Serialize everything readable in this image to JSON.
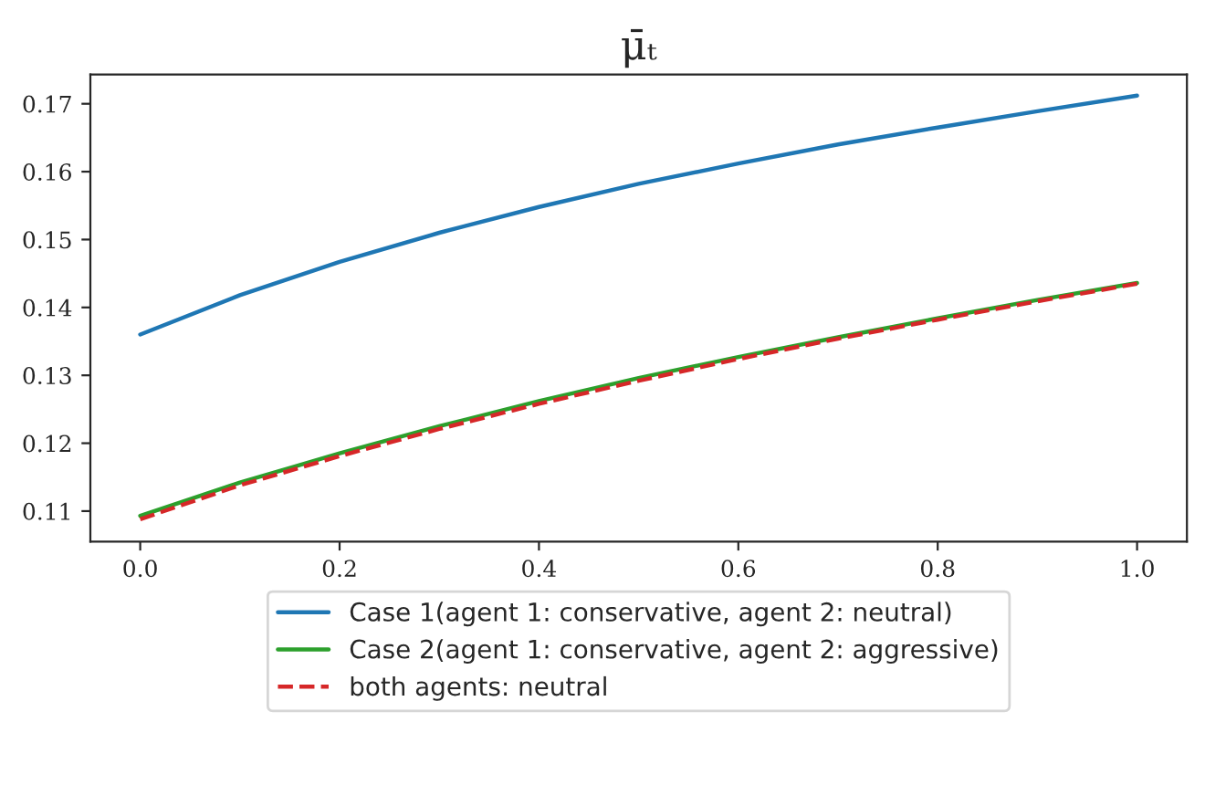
{
  "chart_data": {
    "type": "line",
    "title": "μ̄ₜ",
    "x": [
      0.0,
      0.1,
      0.2,
      0.3,
      0.4,
      0.5,
      0.6,
      0.7,
      0.8,
      0.9,
      1.0
    ],
    "series": [
      {
        "name": "Case 1(agent 1: conservative, agent 2: neutral)",
        "color": "#1f77b4",
        "line_style": "solid",
        "values": [
          0.136,
          0.1418,
          0.1467,
          0.151,
          0.1548,
          0.1582,
          0.1612,
          0.164,
          0.1665,
          0.1689,
          0.1712
        ]
      },
      {
        "name": "Case 2(agent 1: conservative, agent 2: aggressive)",
        "color": "#2ca02c",
        "line_style": "solid",
        "values": [
          0.1093,
          0.1142,
          0.1185,
          0.1225,
          0.1262,
          0.1296,
          0.1327,
          0.1356,
          0.1384,
          0.1411,
          0.1436
        ]
      },
      {
        "name": "both agents: neutral",
        "color": "#d62728",
        "line_style": "dashed",
        "values": [
          0.1088,
          0.1138,
          0.1181,
          0.1221,
          0.1258,
          0.1292,
          0.1324,
          0.1354,
          0.1382,
          0.1409,
          0.1435
        ]
      }
    ],
    "xlim": [
      -0.05,
      1.05
    ],
    "ylim": [
      0.1055,
      0.1743
    ],
    "xticks": [
      {
        "value": 0.0,
        "label": "0.0"
      },
      0.2,
      0.4,
      0.6,
      0.8,
      {
        "value": 1.0,
        "label": "1.0"
      }
    ],
    "yticks": [
      0.11,
      0.12,
      0.13,
      0.14,
      0.15,
      0.16,
      0.17
    ],
    "grid": false,
    "legend": "bottom",
    "marker": "none"
  }
}
